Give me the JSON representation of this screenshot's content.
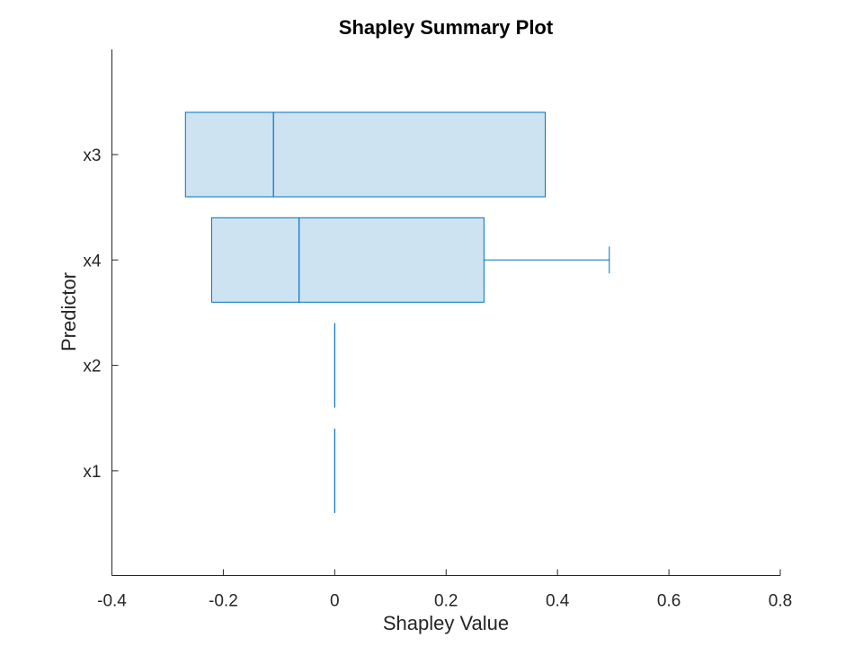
{
  "chart_data": {
    "type": "boxplot",
    "orientation": "horizontal",
    "title": "Shapley Summary Plot",
    "xlabel": "Shapley Value",
    "ylabel": "Predictor",
    "xlim": [
      -0.4,
      0.8
    ],
    "xticks": [
      -0.4,
      -0.2,
      0,
      0.2,
      0.4,
      0.6,
      0.8
    ],
    "xtick_labels": [
      "-0.4",
      "-0.2",
      "0",
      "0.2",
      "0.4",
      "0.6",
      "0.8"
    ],
    "categories": [
      "x3",
      "x4",
      "x2",
      "x1"
    ],
    "boxes": [
      {
        "name": "x3",
        "whisker_low": -0.268,
        "q1": -0.268,
        "median": -0.11,
        "q3": 0.378,
        "whisker_high": 0.378
      },
      {
        "name": "x4",
        "whisker_low": -0.221,
        "q1": -0.221,
        "median": -0.064,
        "q3": 0.268,
        "whisker_high": 0.493
      },
      {
        "name": "x2",
        "whisker_low": 0,
        "q1": 0,
        "median": 0,
        "q3": 0,
        "whisker_high": 0
      },
      {
        "name": "x1",
        "whisker_low": 0,
        "q1": 0,
        "median": 0,
        "q3": 0,
        "whisker_high": 0
      }
    ],
    "grid": false,
    "colors": {
      "box_fill": "#cde3f2",
      "box_edge": "#0072bd",
      "axis": "#262626"
    }
  }
}
